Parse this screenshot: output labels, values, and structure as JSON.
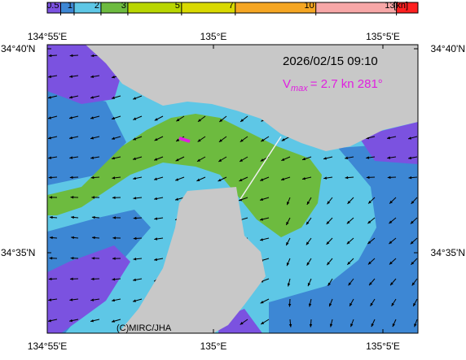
{
  "colorbar": {
    "ticks": [
      0.5,
      1,
      2,
      3,
      5,
      7,
      10,
      13
    ],
    "range": [
      0,
      13.8
    ],
    "unit": "[kn]",
    "colors": [
      "#7b52e0",
      "#3d87d4",
      "#5ec7e6",
      "#6dbb3f",
      "#b9d600",
      "#d9d900",
      "#f5a623",
      "#f7a7a7",
      "#ff2020"
    ]
  },
  "axes": {
    "lon_labels": [
      "134°55'E",
      "135°E",
      "135°5'E"
    ],
    "lat_labels": [
      "34°40'N",
      "34°35'N"
    ]
  },
  "timestamp": "2026/02/15 09:10",
  "vmax": {
    "symbol": "V",
    "subscript": "max",
    "text": "= 2.7 kn 281°"
  },
  "credit": "(C)MIRC/JHA"
}
